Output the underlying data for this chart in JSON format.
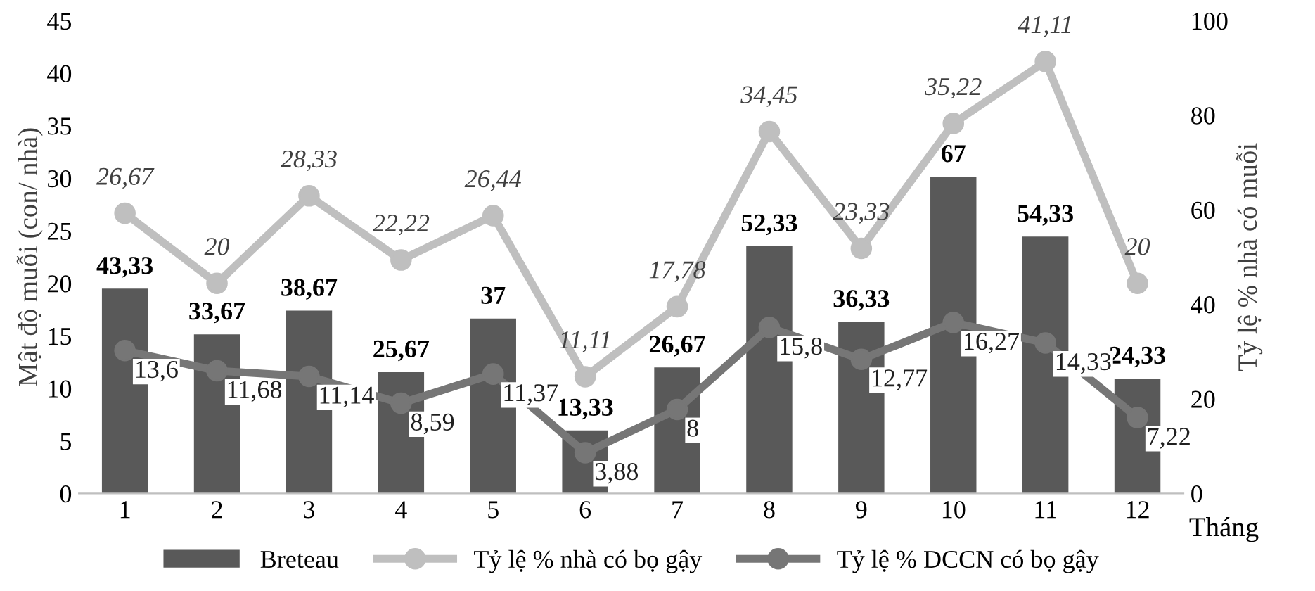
{
  "chart_data": {
    "type": "bar",
    "xlabel": "Tháng",
    "ylabel": "Mật độ muỗi (con/ nhà)",
    "y2label": "Tỷ lệ % nhà có muỗi",
    "categories": [
      "1",
      "2",
      "3",
      "4",
      "5",
      "6",
      "7",
      "8",
      "9",
      "10",
      "11",
      "12"
    ],
    "series": [
      {
        "name": "Breteau",
        "axis": "y2",
        "color": "#595959",
        "values": [
          43.33,
          33.67,
          38.67,
          25.67,
          37,
          13.33,
          26.67,
          52.33,
          36.33,
          67,
          54.33,
          24.33
        ],
        "value_labels": [
          "43,33",
          "33,67",
          "38,67",
          "25,67",
          "37",
          "13,33",
          "26,67",
          "52,33",
          "36,33",
          "67",
          "54,33",
          "24,33"
        ]
      },
      {
        "name": "Tỷ lệ % nhà có bọ gậy",
        "type": "line",
        "color": "#bfbfbf",
        "values": [
          26.67,
          20,
          28.33,
          22.22,
          26.44,
          11.11,
          17.78,
          34.45,
          23.33,
          35.22,
          41.11,
          20
        ],
        "value_labels": [
          "26,67",
          "20",
          "28,33",
          "22,22",
          "26,44",
          "11,11",
          "17,78",
          "34,45",
          "23,33",
          "35,22",
          "41,11",
          "20"
        ]
      },
      {
        "name": "Tỷ lệ % DCCN có bọ gậy",
        "type": "line",
        "color": "#767676",
        "values": [
          13.6,
          11.68,
          11.14,
          8.59,
          11.37,
          3.88,
          8,
          15.8,
          12.77,
          16.27,
          14.33,
          7.22
        ],
        "value_labels": [
          "13,6",
          "11,68",
          "11,14",
          "8,59",
          "11,37",
          "3,88",
          "8",
          "15,8",
          "12,77",
          "16,27",
          "14,33",
          "7,22"
        ]
      }
    ],
    "ylim": [
      0,
      45
    ],
    "yticks": [
      0,
      5,
      10,
      15,
      20,
      25,
      30,
      35,
      40,
      45
    ],
    "y2lim": [
      0,
      100
    ],
    "y2ticks": [
      0,
      20,
      40,
      60,
      80,
      100
    ],
    "marker": "circle",
    "line_style": "solid",
    "grid": false,
    "legend": "bottom"
  }
}
